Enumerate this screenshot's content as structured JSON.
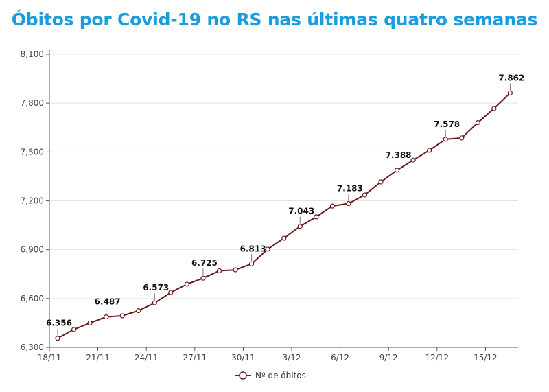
{
  "chart_data": {
    "type": "line",
    "title": "Óbitos por Covid-19 no RS nas últimas quatro semanas",
    "xlabel": "",
    "ylabel": "",
    "x": [
      "18/11",
      "19/11",
      "20/11",
      "21/11",
      "22/11",
      "23/11",
      "24/11",
      "25/11",
      "26/11",
      "27/11",
      "28/11",
      "29/11",
      "30/11",
      "1/12",
      "2/12",
      "3/12",
      "4/12",
      "5/12",
      "6/12",
      "7/12",
      "8/12",
      "9/12",
      "10/12",
      "11/12",
      "12/12",
      "13/12",
      "14/12",
      "15/12",
      "16/12"
    ],
    "x_tick_labels": [
      "18/11",
      "21/11",
      "24/11",
      "27/11",
      "30/11",
      "3/12",
      "6/12",
      "9/12",
      "12/12",
      "15/12"
    ],
    "y_tick_labels": [
      "6,300",
      "6,600",
      "6,900",
      "7,200",
      "7,500",
      "7,800",
      "8,100"
    ],
    "ylim": [
      6300,
      8100
    ],
    "grid": "horizontal",
    "legend": "bottom",
    "series": [
      {
        "name": "Nº de óbitos",
        "color": "#6b1a1a",
        "values": [
          6356,
          6410,
          6450,
          6487,
          6494,
          6525,
          6573,
          6637,
          6688,
          6725,
          6770,
          6776,
          6813,
          6903,
          6970,
          7043,
          7101,
          7168,
          7183,
          7236,
          7316,
          7388,
          7450,
          7510,
          7578,
          7586,
          7680,
          7767,
          7862
        ]
      }
    ],
    "data_labels": [
      {
        "x": "18/11",
        "text": "6.356"
      },
      {
        "x": "21/11",
        "text": "6.487"
      },
      {
        "x": "24/11",
        "text": "6.573"
      },
      {
        "x": "27/11",
        "text": "6.725"
      },
      {
        "x": "30/11",
        "text": "6.813"
      },
      {
        "x": "3/12",
        "text": "7.043"
      },
      {
        "x": "6/12",
        "text": "7.183"
      },
      {
        "x": "9/12",
        "text": "7.388"
      },
      {
        "x": "12/12",
        "text": "7.578"
      },
      {
        "x": "16/12",
        "text": "7.862"
      }
    ]
  }
}
